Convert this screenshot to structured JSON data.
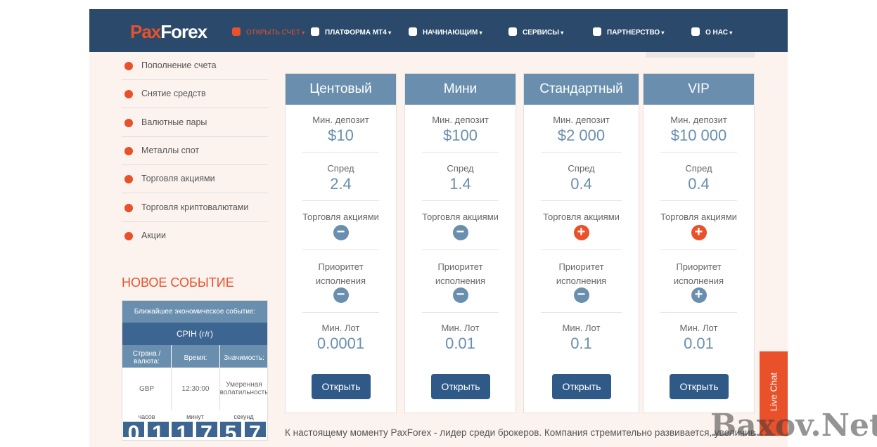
{
  "logo": {
    "part1": "Pax",
    "part2": "Forex"
  },
  "nav": [
    "ОТКРЫТЬ СЧЕТ",
    "ПЛАТФОРМА MT4",
    "НАЧИНАЮЩИМ",
    "СЕРВИСЫ",
    "ПАРТНЕРСТВО",
    "О НАС"
  ],
  "sidebar": [
    "Пополнение счета",
    "Снятие средств",
    "Валютные пары",
    "Металлы спот",
    "Торговля акциями",
    "Торговля криптовалютами",
    "Акции"
  ],
  "event": {
    "title": "НОВОЕ СОБЫТИЕ",
    "header": "Ближайшее экономическое событие:",
    "name": "CPIH (г/г)",
    "columns": [
      "Страна / валюта:",
      "Время:",
      "Значимость:"
    ],
    "row": [
      "GBP",
      "12:30:00",
      "Умеренная волатильность"
    ],
    "timer_labels": [
      "часов",
      "минут",
      "секунд"
    ],
    "digits": [
      "0",
      "1",
      "1",
      "7",
      "5",
      "7"
    ]
  },
  "plans": [
    {
      "name": "Центовый",
      "deposit_label": "Мин. депозит",
      "deposit": "$10",
      "spread_label": "Спред",
      "spread": "2.4",
      "stocks_label": "Торговля акциями",
      "stocks": false,
      "priority_label": "Приоритет исполнения",
      "priority": false,
      "lot_label": "Мин. Лот",
      "lot": "0.0001",
      "button": "Открыть"
    },
    {
      "name": "Мини",
      "deposit_label": "Мин. депозит",
      "deposit": "$100",
      "spread_label": "Спред",
      "spread": "1.4",
      "stocks_label": "Торговля акциями",
      "stocks": false,
      "priority_label": "Приоритет исполнения",
      "priority": false,
      "lot_label": "Мин. Лот",
      "lot": "0.01",
      "button": "Открыть"
    },
    {
      "name": "Стандартный",
      "deposit_label": "Мин. депозит",
      "deposit": "$2 000",
      "spread_label": "Спред",
      "spread": "0.4",
      "stocks_label": "Торговля акциями",
      "stocks": true,
      "priority_label": "Приоритет исполнения",
      "priority": false,
      "lot_label": "Мин. Лот",
      "lot": "0.1",
      "button": "Открыть"
    },
    {
      "name": "VIP",
      "deposit_label": "Мин. депозит",
      "deposit": "$10 000",
      "spread_label": "Спред",
      "spread": "0.4",
      "stocks_label": "Торговля акциями",
      "stocks": true,
      "priority_label": "Приоритет исполнения",
      "priority": true,
      "lot_label": "Мин. Лот",
      "lot": "0.01",
      "button": "Открыть"
    }
  ],
  "footer_text": "К настоящему моменту PaxForex - лидер среди брокеров. Компания стремительно развивается, увеличивая",
  "live_chat": "Live Chat",
  "watermark": "Baxov.Net"
}
